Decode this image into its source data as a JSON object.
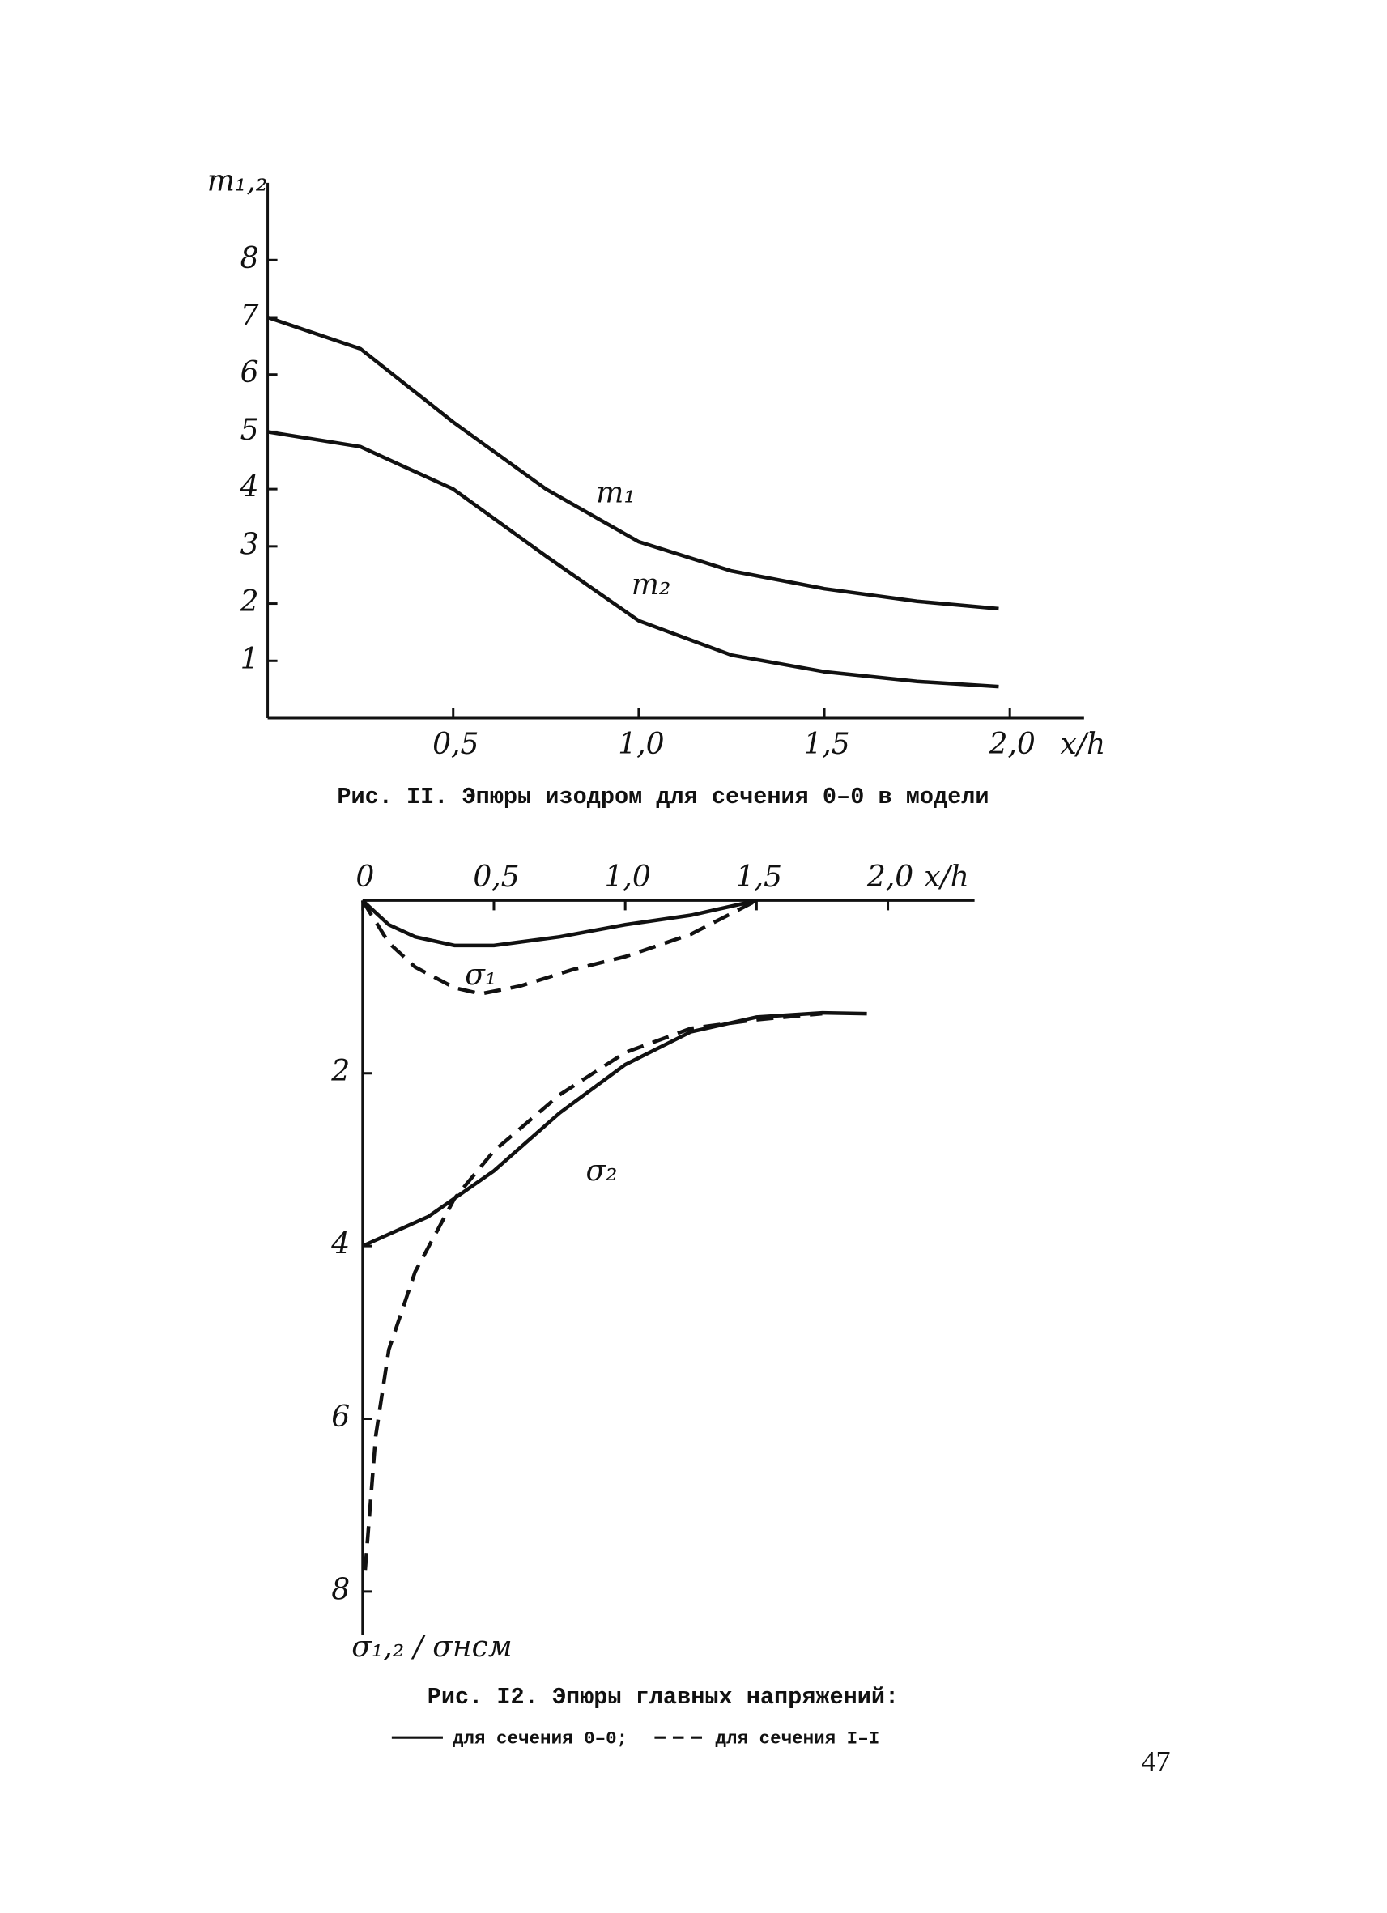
{
  "chart_data": [
    {
      "type": "line",
      "y_label": "m₁,₂",
      "x_label": "x/h",
      "caption": "Рис. II. Эпюры изодром для сечения 0–0 в модели",
      "xlim": [
        0,
        2.2
      ],
      "ylim": [
        0,
        9.35
      ],
      "xticks": [
        {
          "value": 0.5,
          "label": "0,5"
        },
        {
          "value": 1.0,
          "label": "1,0"
        },
        {
          "value": 1.5,
          "label": "1,5"
        },
        {
          "value": 2.0,
          "label": "2,0"
        }
      ],
      "yticks": [
        1,
        2,
        3,
        4,
        5,
        6,
        7,
        8
      ],
      "x": [
        0,
        0.25,
        0.5,
        0.75,
        1.0,
        1.25,
        1.5,
        1.75,
        1.97
      ],
      "series": [
        {
          "name": "m₁",
          "color": "#111111",
          "style": "solid",
          "values": [
            7.0,
            6.45,
            5.17,
            4.0,
            3.08,
            2.57,
            2.26,
            2.04,
            1.91
          ],
          "label_at": [
            0.885,
            3.9
          ]
        },
        {
          "name": "m₂",
          "color": "#111111",
          "style": "solid",
          "values": [
            5.0,
            4.74,
            4.0,
            2.83,
            1.7,
            1.1,
            0.81,
            0.64,
            0.55
          ],
          "label_at": [
            0.98,
            2.3
          ]
        }
      ]
    },
    {
      "type": "line",
      "y_label": "σ₁,₂ / σнсм",
      "x_label": "x/h",
      "caption": "Рис. I2. Эпюры главных напряжений:",
      "y_inverted": true,
      "x_axis_position": "top",
      "xlim": [
        0,
        2.33
      ],
      "ylim": [
        0,
        8.5
      ],
      "xticks": [
        0,
        {
          "value": 0.5,
          "label": "0,5"
        },
        {
          "value": 1.0,
          "label": "1,0"
        },
        {
          "value": 1.5,
          "label": "1,5"
        },
        {
          "value": 2.0,
          "label": "2,0"
        }
      ],
      "yticks": [
        2,
        4,
        6,
        8
      ],
      "legend": [
        {
          "name": "для сечения 0–0;",
          "style": "solid"
        },
        {
          "name": "для сечения I–I",
          "style": "dashed"
        }
      ],
      "annotations": [
        {
          "text": "σ₁",
          "x": 0.45,
          "y": 0.88
        },
        {
          "text": "σ₂",
          "x": 0.91,
          "y": 3.15
        }
      ],
      "series": [
        {
          "color": "#111111",
          "style": "solid",
          "x": [
            0,
            0.1,
            0.2,
            0.35,
            0.5,
            0.75,
            1.0,
            1.25,
            1.5
          ],
          "values": [
            0,
            0.28,
            0.42,
            0.52,
            0.52,
            0.42,
            0.28,
            0.17,
            0
          ]
        },
        {
          "color": "#111111",
          "style": "dashed",
          "x": [
            0,
            0.1,
            0.2,
            0.35,
            0.45,
            0.6,
            0.8,
            1.0,
            1.25,
            1.5
          ],
          "values": [
            0,
            0.49,
            0.77,
            1.01,
            1.08,
            0.99,
            0.8,
            0.65,
            0.39,
            0
          ]
        },
        {
          "color": "#111111",
          "style": "solid",
          "x": [
            0,
            0.25,
            0.5,
            0.75,
            1.0,
            1.25,
            1.5,
            1.75,
            1.92
          ],
          "values": [
            4.0,
            3.66,
            3.13,
            2.46,
            1.9,
            1.52,
            1.35,
            1.3,
            1.31
          ]
        },
        {
          "color": "#111111",
          "style": "dashed",
          "x": [
            0.01,
            0.05,
            0.1,
            0.2,
            0.35,
            0.5,
            0.75,
            1.0,
            1.25,
            1.5,
            1.75
          ],
          "values": [
            7.75,
            6.2,
            5.2,
            4.3,
            3.45,
            2.9,
            2.25,
            1.76,
            1.48,
            1.38,
            1.31
          ]
        }
      ]
    }
  ],
  "page_number": "47"
}
